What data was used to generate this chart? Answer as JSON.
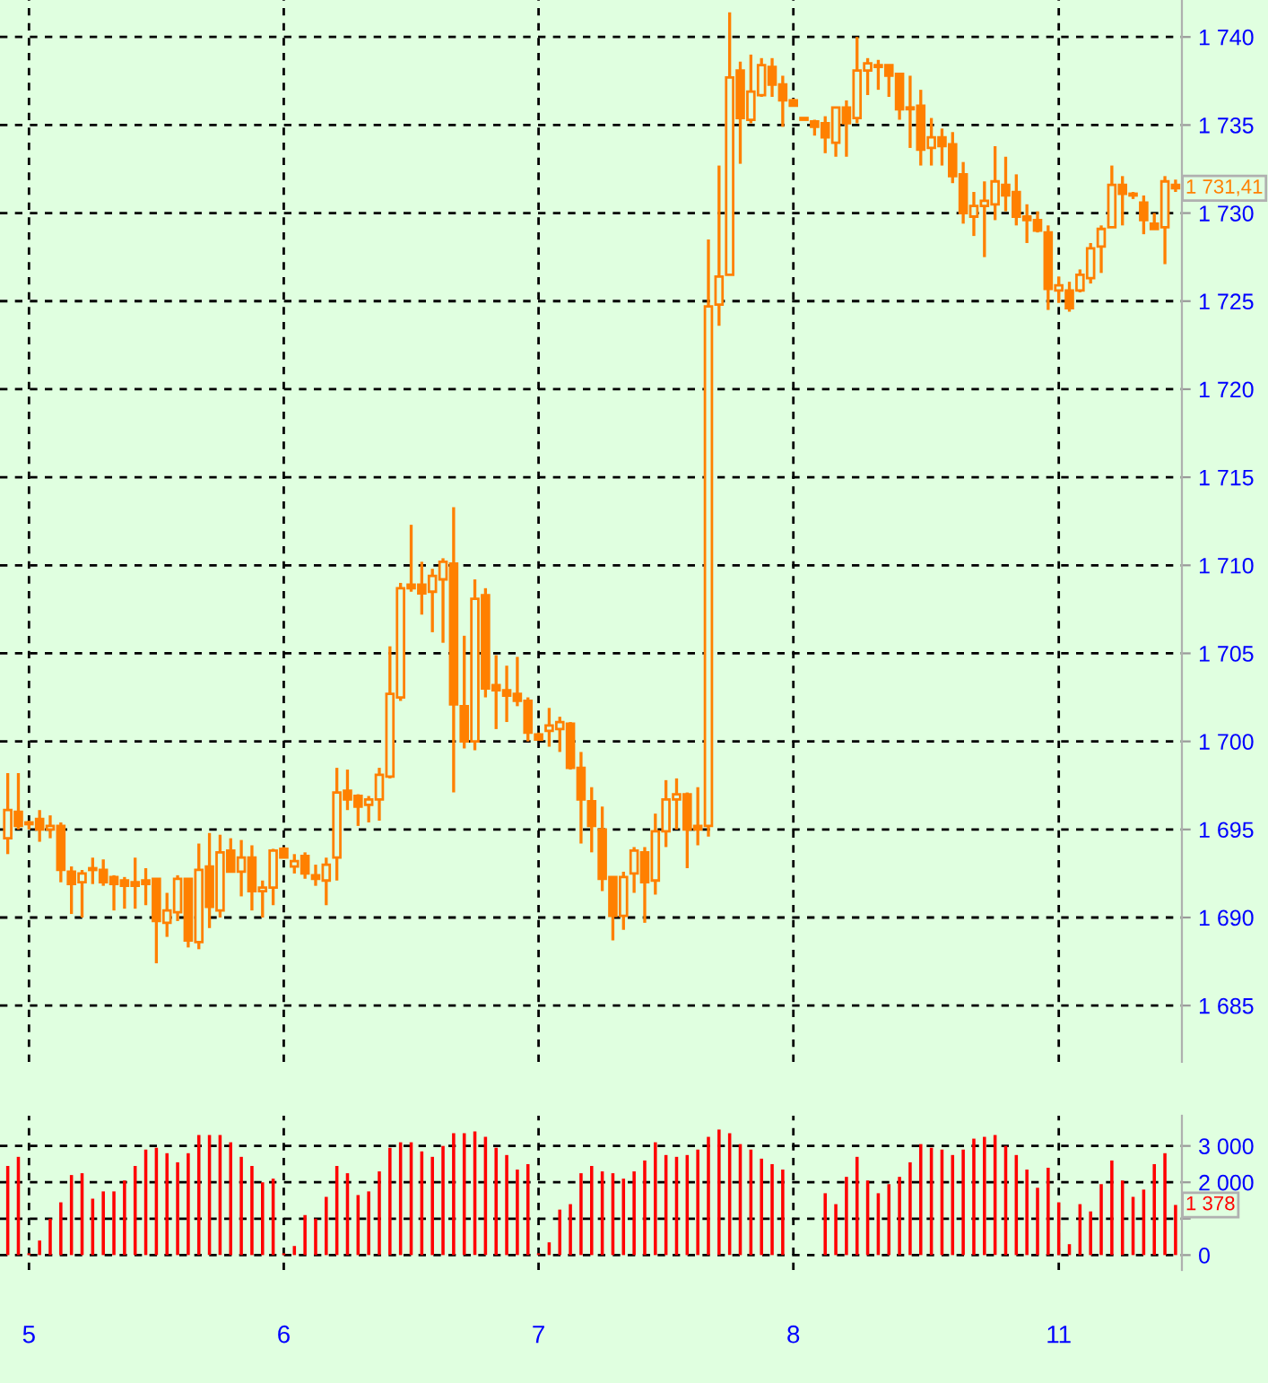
{
  "chart_data": [
    {
      "type": "candlestick",
      "color": "#ff8000",
      "grid": true,
      "tick_labels": "y",
      "categories": [
        null,
        null,
        "5",
        null,
        null,
        null,
        null,
        null,
        null,
        null,
        null,
        null,
        null,
        null,
        null,
        null,
        null,
        null,
        null,
        null,
        null,
        null,
        null,
        null,
        null,
        null,
        "6",
        null,
        null,
        null,
        null,
        null,
        null,
        null,
        null,
        null,
        null,
        null,
        null,
        null,
        null,
        null,
        null,
        null,
        null,
        null,
        null,
        null,
        null,
        null,
        "7",
        null,
        null,
        null,
        null,
        null,
        null,
        null,
        null,
        null,
        null,
        null,
        null,
        null,
        null,
        null,
        null,
        null,
        null,
        null,
        null,
        null,
        null,
        null,
        "8",
        null,
        null,
        null,
        null,
        null,
        null,
        null,
        null,
        null,
        null,
        null,
        null,
        null,
        null,
        null,
        null,
        null,
        null,
        null,
        null,
        null,
        null,
        null,
        null,
        "11",
        null,
        null,
        null,
        null,
        null,
        null,
        null,
        null,
        null,
        null,
        null
      ],
      "ohlc": [
        [
          1694.5,
          1698.2,
          1693.6,
          1696.1
        ],
        [
          1696.0,
          1698.2,
          1695.0,
          1695.2
        ],
        [
          1695.4,
          1695.5,
          1695.0,
          1695.3
        ],
        [
          1695.6,
          1696.1,
          1694.3,
          1695.0
        ],
        [
          1695.0,
          1695.8,
          1694.5,
          1695.2
        ],
        [
          1695.2,
          1695.4,
          1692.0,
          1692.7
        ],
        [
          1692.6,
          1692.9,
          1690.2,
          1691.9
        ],
        [
          1692.0,
          1692.7,
          1690.0,
          1692.5
        ],
        [
          1692.8,
          1693.4,
          1691.9,
          1692.7
        ],
        [
          1692.7,
          1693.3,
          1691.8,
          1692.0
        ],
        [
          1692.3,
          1692.4,
          1690.4,
          1691.9
        ],
        [
          1692.1,
          1692.3,
          1690.5,
          1691.8
        ],
        [
          1692.0,
          1693.4,
          1690.5,
          1691.8
        ],
        [
          1692.1,
          1692.8,
          1690.7,
          1691.9
        ],
        [
          1692.2,
          1692.2,
          1687.4,
          1689.8
        ],
        [
          1689.7,
          1691.4,
          1688.9,
          1690.4
        ],
        [
          1690.3,
          1692.4,
          1689.8,
          1692.2
        ],
        [
          1692.2,
          1692.2,
          1688.3,
          1688.7
        ],
        [
          1688.6,
          1694.2,
          1688.2,
          1692.7
        ],
        [
          1692.9,
          1694.8,
          1689.4,
          1690.6
        ],
        [
          1690.4,
          1694.7,
          1690.0,
          1693.7
        ],
        [
          1693.8,
          1694.5,
          1692.6,
          1692.6
        ],
        [
          1692.6,
          1694.4,
          1691.2,
          1693.4
        ],
        [
          1693.4,
          1694.1,
          1690.4,
          1691.5
        ],
        [
          1691.5,
          1692.1,
          1690.0,
          1691.7
        ],
        [
          1691.7,
          1693.9,
          1690.7,
          1693.8
        ],
        [
          1693.9,
          1694.0,
          1693.4,
          1693.4
        ],
        [
          1692.9,
          1693.6,
          1692.5,
          1693.2
        ],
        [
          1693.5,
          1693.7,
          1692.2,
          1692.5
        ],
        [
          1692.4,
          1693.0,
          1691.8,
          1692.2
        ],
        [
          1692.1,
          1693.4,
          1690.7,
          1693.0
        ],
        [
          1693.4,
          1698.5,
          1692.1,
          1697.1
        ],
        [
          1697.2,
          1698.4,
          1696.1,
          1696.7
        ],
        [
          1696.9,
          1697.0,
          1695.2,
          1696.3
        ],
        [
          1696.4,
          1696.9,
          1695.4,
          1696.7
        ],
        [
          1696.7,
          1698.5,
          1695.5,
          1698.1
        ],
        [
          1698.0,
          1705.4,
          1697.9,
          1702.7
        ],
        [
          1702.5,
          1709.0,
          1702.3,
          1708.7
        ],
        [
          1708.9,
          1712.3,
          1708.5,
          1708.7
        ],
        [
          1708.9,
          1710.2,
          1707.2,
          1708.4
        ],
        [
          1708.5,
          1709.8,
          1706.2,
          1709.4
        ],
        [
          1709.2,
          1710.4,
          1705.6,
          1710.2
        ],
        [
          1710.1,
          1713.3,
          1697.1,
          1702.1
        ],
        [
          1702.0,
          1706.0,
          1699.6,
          1700.0
        ],
        [
          1700.0,
          1709.2,
          1699.5,
          1708.1
        ],
        [
          1708.3,
          1708.7,
          1702.5,
          1703.0
        ],
        [
          1703.2,
          1704.9,
          1700.7,
          1702.9
        ],
        [
          1702.9,
          1704.3,
          1701.1,
          1702.6
        ],
        [
          1702.7,
          1704.8,
          1702.0,
          1702.3
        ],
        [
          1702.3,
          1702.5,
          1700.0,
          1700.5
        ],
        [
          1700.4,
          1700.5,
          1700.1,
          1700.1
        ],
        [
          1700.6,
          1701.9,
          1699.7,
          1700.9
        ],
        [
          1700.7,
          1701.4,
          1699.4,
          1701.1
        ],
        [
          1701.0,
          1701.1,
          1698.4,
          1698.5
        ],
        [
          1698.5,
          1699.4,
          1694.2,
          1696.7
        ],
        [
          1696.6,
          1697.4,
          1693.7,
          1695.2
        ],
        [
          1695.0,
          1696.3,
          1691.5,
          1692.2
        ],
        [
          1692.3,
          1692.3,
          1688.7,
          1690.1
        ],
        [
          1690.1,
          1692.6,
          1689.3,
          1692.3
        ],
        [
          1692.5,
          1694.0,
          1691.4,
          1693.8
        ],
        [
          1693.7,
          1694.0,
          1689.7,
          1692.0
        ],
        [
          1692.1,
          1695.9,
          1691.3,
          1694.9
        ],
        [
          1694.9,
          1697.8,
          1694.0,
          1696.7
        ],
        [
          1696.7,
          1697.9,
          1695.0,
          1697.0
        ],
        [
          1697.0,
          1697.1,
          1692.8,
          1695.0
        ],
        [
          1695.2,
          1697.4,
          1694.1,
          1695.0
        ],
        [
          1695.2,
          1728.5,
          1694.6,
          1724.7
        ],
        [
          1724.8,
          1732.7,
          1723.6,
          1726.4
        ],
        [
          1726.5,
          1741.4,
          1726.5,
          1737.7
        ],
        [
          1738.1,
          1738.6,
          1732.8,
          1735.4
        ],
        [
          1735.3,
          1739.0,
          1735.1,
          1736.9
        ],
        [
          1736.7,
          1738.8,
          1736.6,
          1738.4
        ],
        [
          1738.3,
          1738.8,
          1736.6,
          1737.3
        ],
        [
          1737.3,
          1737.8,
          1734.9,
          1736.4
        ],
        [
          1736.4,
          1736.5,
          1736.1,
          1736.1
        ],
        [
          1735.4,
          1735.4,
          1735.3,
          1735.3
        ],
        [
          1735.2,
          1735.3,
          1734.4,
          1734.9
        ],
        [
          1735.1,
          1735.5,
          1733.4,
          1734.3
        ],
        [
          1734.0,
          1736.0,
          1733.2,
          1736.0
        ],
        [
          1736.0,
          1736.4,
          1733.2,
          1735.1
        ],
        [
          1735.4,
          1740.0,
          1735.1,
          1738.1
        ],
        [
          1738.1,
          1738.8,
          1736.7,
          1738.5
        ],
        [
          1738.4,
          1738.7,
          1737.0,
          1738.3
        ],
        [
          1738.4,
          1738.4,
          1736.6,
          1737.8
        ],
        [
          1737.9,
          1737.9,
          1735.3,
          1735.9
        ],
        [
          1736.0,
          1737.8,
          1733.7,
          1735.9
        ],
        [
          1736.1,
          1737.0,
          1732.7,
          1733.6
        ],
        [
          1733.7,
          1735.4,
          1732.7,
          1734.3
        ],
        [
          1734.3,
          1734.8,
          1732.7,
          1733.8
        ],
        [
          1733.9,
          1734.6,
          1731.7,
          1732.1
        ],
        [
          1732.2,
          1732.9,
          1729.4,
          1730.0
        ],
        [
          1729.8,
          1731.2,
          1728.7,
          1730.4
        ],
        [
          1730.4,
          1731.8,
          1727.5,
          1730.7
        ],
        [
          1730.5,
          1733.8,
          1729.6,
          1731.8
        ],
        [
          1731.6,
          1733.2,
          1730.1,
          1731.0
        ],
        [
          1731.2,
          1732.2,
          1729.3,
          1729.8
        ],
        [
          1729.8,
          1730.5,
          1728.3,
          1729.6
        ],
        [
          1729.6,
          1730.1,
          1728.9,
          1729.0
        ],
        [
          1728.9,
          1729.3,
          1724.5,
          1725.7
        ],
        [
          1725.6,
          1726.4,
          1724.9,
          1725.9
        ],
        [
          1725.6,
          1726.1,
          1724.4,
          1724.6
        ],
        [
          1725.6,
          1726.8,
          1725.5,
          1726.5
        ],
        [
          1726.3,
          1728.3,
          1726.0,
          1728.0
        ],
        [
          1728.1,
          1729.3,
          1726.6,
          1729.1
        ],
        [
          1729.2,
          1732.7,
          1729.2,
          1731.6
        ],
        [
          1731.6,
          1732.1,
          1729.3,
          1731.1
        ],
        [
          1731.1,
          1731.2,
          1730.8,
          1731.0
        ],
        [
          1730.6,
          1731.0,
          1728.8,
          1729.6
        ],
        [
          1729.4,
          1730.0,
          1729.1,
          1729.1
        ],
        [
          1729.2,
          1732.1,
          1727.1,
          1731.8
        ],
        [
          1731.6,
          1731.9,
          1731.2,
          1731.41
        ]
      ],
      "ylim": [
        1681.8,
        1742.1
      ],
      "yticks": [
        {
          "value": 1685,
          "label": "1 685"
        },
        {
          "value": 1690,
          "label": "1 690"
        },
        {
          "value": 1695,
          "label": "1 695"
        },
        {
          "value": 1700,
          "label": "1 700"
        },
        {
          "value": 1705,
          "label": "1 705"
        },
        {
          "value": 1710,
          "label": "1 710"
        },
        {
          "value": 1715,
          "label": "1 715"
        },
        {
          "value": 1720,
          "label": "1 720"
        },
        {
          "value": 1725,
          "label": "1 725"
        },
        {
          "value": 1730,
          "label": "1 730"
        },
        {
          "value": 1735,
          "label": "1 735"
        },
        {
          "value": 1740,
          "label": "1 740"
        }
      ],
      "annotations": [
        "1 731,41"
      ]
    },
    {
      "type": "bar",
      "color": "#ff0000",
      "grid": true,
      "categories": [
        null,
        null,
        "5",
        null,
        null,
        null,
        null,
        null,
        null,
        null,
        null,
        null,
        null,
        null,
        null,
        null,
        null,
        null,
        null,
        null,
        null,
        null,
        null,
        null,
        null,
        null,
        "6",
        null,
        null,
        null,
        null,
        null,
        null,
        null,
        null,
        null,
        null,
        null,
        null,
        null,
        null,
        null,
        null,
        null,
        null,
        null,
        null,
        null,
        null,
        null,
        "7",
        null,
        null,
        null,
        null,
        null,
        null,
        null,
        null,
        null,
        null,
        null,
        null,
        null,
        null,
        null,
        null,
        null,
        null,
        null,
        null,
        null,
        null,
        null,
        "8",
        null,
        null,
        null,
        null,
        null,
        null,
        null,
        null,
        null,
        null,
        null,
        null,
        null,
        null,
        null,
        null,
        null,
        null,
        null,
        null,
        null,
        null,
        null,
        null,
        "11",
        null,
        null,
        null,
        null,
        null,
        null,
        null,
        null,
        null,
        null,
        null
      ],
      "values": [
        2450,
        2700,
        50,
        400,
        1000,
        1450,
        2200,
        2250,
        1550,
        1750,
        1750,
        2050,
        2450,
        2900,
        2950,
        2800,
        2550,
        2800,
        3300,
        3300,
        3300,
        3100,
        2700,
        2450,
        2000,
        2100,
        50,
        250,
        1100,
        1000,
        1600,
        2450,
        2250,
        1650,
        1750,
        2300,
        2950,
        3100,
        3100,
        2850,
        2700,
        3000,
        3350,
        3350,
        3400,
        3250,
        2950,
        2750,
        2350,
        2500,
        50,
        350,
        1250,
        1400,
        2250,
        2450,
        2300,
        2250,
        2100,
        2300,
        2600,
        3100,
        2750,
        2700,
        2750,
        2900,
        3250,
        3450,
        3350,
        3050,
        2900,
        2650,
        2500,
        2350,
        0,
        0,
        0,
        1700,
        1400,
        2150,
        2700,
        2050,
        1700,
        1950,
        2150,
        2550,
        3050,
        2950,
        2900,
        2750,
        2900,
        3200,
        3250,
        3300,
        3000,
        2750,
        2350,
        1850,
        2400,
        1450,
        300,
        1400,
        1200,
        1950,
        2600,
        2050,
        1600,
        1800,
        2500,
        2800,
        1378
      ],
      "ylim": [
        -410,
        3830
      ],
      "yticks": [
        0,
        {
          "value": 1000,
          "label": null
        },
        {
          "value": 2000,
          "label": "2 000"
        },
        {
          "value": 3000,
          "label": "3 000"
        }
      ],
      "annotations": [
        "1 378"
      ]
    }
  ]
}
